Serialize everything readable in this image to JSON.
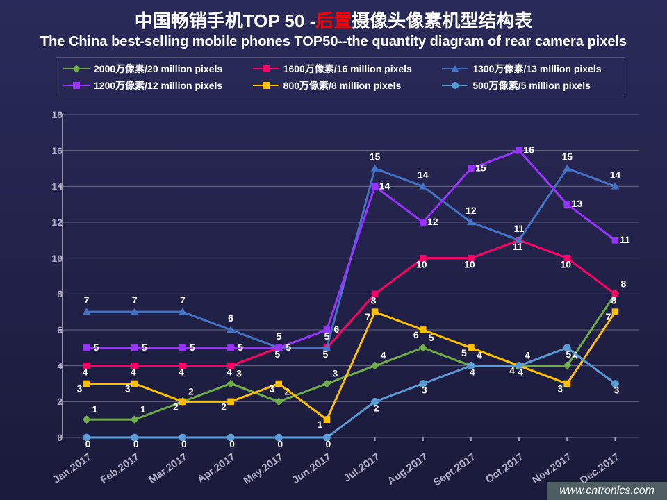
{
  "title": {
    "cn_prefix": "中国畅销手机TOP 50 -",
    "cn_highlight": "后置",
    "cn_suffix": "摄像头像素机型结构表",
    "en": "The China best-selling mobile phones TOP50--the quantity diagram of rear camera pixels"
  },
  "watermark": "www.cntronics.com",
  "chart": {
    "type": "line",
    "background_gradient": [
      "#2a2a5a",
      "#1a1a3a"
    ],
    "grid_color": "#6a6a8a",
    "axis_color": "#9090a8",
    "label_color": "#b0b0c8",
    "data_label_color": "#ffffff",
    "ylim": [
      0,
      18
    ],
    "ytick_step": 2,
    "categories": [
      "Jan.2017",
      "Feb.2017",
      "Mar.2017",
      "Apr.2017",
      "May.2017",
      "Jun.2017",
      "Jul.2017",
      "Aug.2017",
      "Sept.2017",
      "Oct.2017",
      "Nov.2017",
      "Dec.2017"
    ],
    "series": [
      {
        "name": "2000万像素/20 million pixels",
        "color": "#70ad47",
        "marker": "diamond",
        "values": [
          1,
          1,
          2,
          3,
          2,
          3,
          4,
          5,
          4,
          4,
          4,
          8
        ]
      },
      {
        "name": "1600万像素/16 million pixels",
        "color": "#ff0066",
        "marker": "square",
        "values": [
          4,
          4,
          4,
          4,
          5,
          5,
          8,
          10,
          10,
          11,
          10,
          8
        ]
      },
      {
        "name": "1300万像素/13 million pixels",
        "color": "#4472c4",
        "marker": "triangle",
        "values": [
          7,
          7,
          7,
          6,
          5,
          5,
          15,
          14,
          12,
          11,
          15,
          14
        ]
      },
      {
        "name": "1200万像素/12 million pixels",
        "color": "#9933ff",
        "marker": "square",
        "values": [
          5,
          5,
          5,
          5,
          5,
          6,
          14,
          12,
          15,
          16,
          13,
          11
        ]
      },
      {
        "name": "800万像素/8 million pixels",
        "color": "#ffc000",
        "marker": "square",
        "values": [
          3,
          3,
          2,
          2,
          3,
          1,
          7,
          6,
          5,
          4,
          3,
          7
        ]
      },
      {
        "name": "500万像素/5 million pixels",
        "color": "#5b9bd5",
        "marker": "circle",
        "values": [
          0,
          0,
          0,
          0,
          0,
          0,
          2,
          3,
          4,
          4,
          5,
          3
        ]
      }
    ],
    "line_width": 3,
    "marker_size": 6,
    "label_fontsize": 14,
    "title_fontsize_cn": 26,
    "title_fontsize_en": 20
  }
}
